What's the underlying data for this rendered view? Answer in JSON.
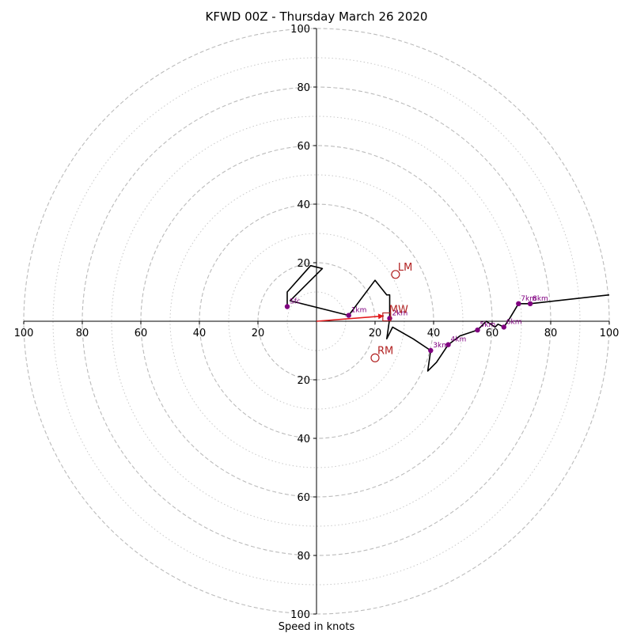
{
  "chart_data": {
    "type": "scatter",
    "title": "KFWD 00Z - Thursday March 26 2020",
    "xlabel": "Speed in knots",
    "ylabel": "",
    "xlim": [
      -100,
      100
    ],
    "ylim": [
      -100,
      100
    ],
    "major_ring_values": [
      20,
      40,
      60,
      80,
      100
    ],
    "minor_ring_values": [
      10,
      30,
      50,
      70,
      90
    ],
    "x_tick_labels": [
      "100",
      "80",
      "60",
      "40",
      "20",
      "20",
      "40",
      "60",
      "80",
      "100"
    ],
    "x_tick_values": [
      -100,
      -80,
      -60,
      -40,
      -20,
      20,
      40,
      60,
      80,
      100
    ],
    "y_tick_labels": [
      "100",
      "80",
      "60",
      "40",
      "20",
      "20",
      "40",
      "60",
      "80",
      "100"
    ],
    "y_tick_values": [
      100,
      80,
      60,
      40,
      20,
      -20,
      -40,
      -60,
      -80,
      -100
    ],
    "grid": true,
    "hodograph": {
      "name": "hodograph",
      "u": [
        -10,
        -10,
        -2,
        2,
        -9,
        11,
        20,
        24,
        25,
        25,
        24,
        26,
        33,
        39,
        38,
        41,
        45,
        49,
        55,
        58,
        61,
        62,
        64,
        66,
        69,
        73,
        100
      ],
      "v": [
        5,
        10,
        19,
        18,
        7,
        2,
        14,
        9,
        9,
        1,
        -6,
        -2,
        -6,
        -10,
        -17,
        -14,
        -8,
        -5,
        -3,
        0,
        -2,
        -1,
        -2,
        1,
        6,
        6,
        9
      ]
    },
    "height_markers": [
      {
        "label": "Sfc",
        "u": -10,
        "v": 5
      },
      {
        "label": "1km",
        "u": 11,
        "v": 2
      },
      {
        "label": "2km",
        "u": 25,
        "v": 1
      },
      {
        "label": "3km",
        "u": 39,
        "v": -10
      },
      {
        "label": "4km",
        "u": 45,
        "v": -8
      },
      {
        "label": "5km",
        "u": 55,
        "v": -3
      },
      {
        "label": "6km",
        "u": 64,
        "v": -2
      },
      {
        "label": "7km",
        "u": 69,
        "v": 6
      },
      {
        "label": "8km",
        "u": 73,
        "v": 6
      }
    ],
    "storm_motions": [
      {
        "label": "LM",
        "u": 27,
        "v": 16,
        "marker": "circle"
      },
      {
        "label": "MW",
        "u": 24,
        "v": 1.5,
        "marker": "square"
      },
      {
        "label": "RM",
        "u": 20,
        "v": -12.5,
        "marker": "circle"
      }
    ],
    "vector": {
      "from_u": 0,
      "from_v": 0,
      "to_u": 23,
      "to_v": 1.8
    },
    "colors": {
      "hodograph": "#000000",
      "height_markers": "#800080",
      "storm_motion": "#b22222",
      "vector": "#e31a1c",
      "grid": "#bbbbbb"
    }
  }
}
